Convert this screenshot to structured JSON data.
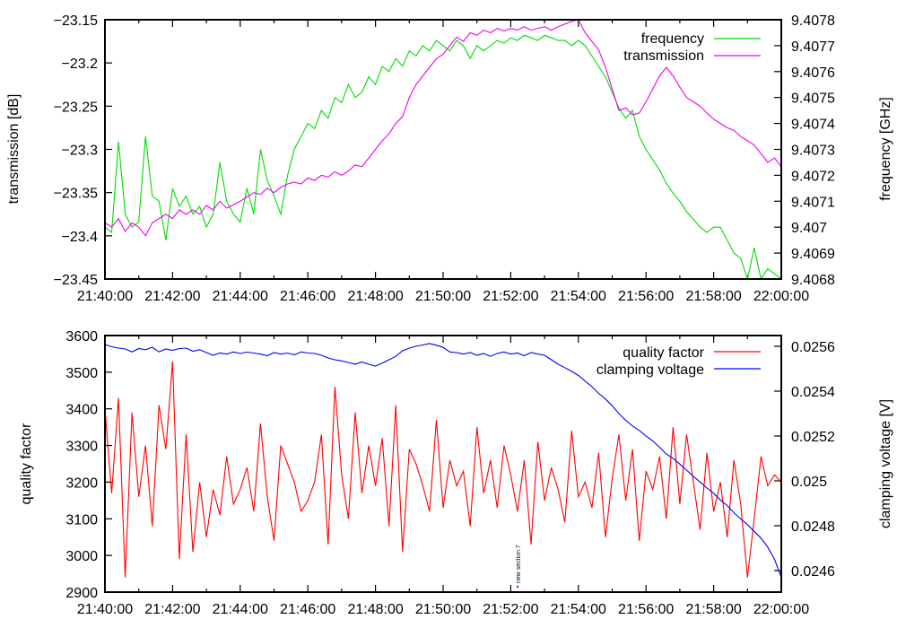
{
  "chart_data": [
    {
      "type": "line",
      "panel": "top",
      "xlabel": "",
      "x_tick_labels": [
        "21:40:00",
        "21:42:00",
        "21:44:00",
        "21:46:00",
        "21:48:00",
        "21:50:00",
        "21:52:00",
        "21:54:00",
        "21:56:00",
        "21:58:00",
        "22:00:00"
      ],
      "x_unit": "minutes after 21:40:00",
      "xlim": [
        0,
        20
      ],
      "y_left": {
        "label": "transmission [dB]",
        "ylim": [
          -23.45,
          -23.15
        ],
        "tick_labels": [
          "-23.45",
          "-23.4",
          "-23.35",
          "-23.3",
          "-23.25",
          "-23.2",
          "-23.15"
        ],
        "ticks": [
          -23.45,
          -23.4,
          -23.35,
          -23.3,
          -23.25,
          -23.2,
          -23.15
        ]
      },
      "y_right": {
        "label": "frequency [GHz]",
        "ylim": [
          9.4068,
          9.4078
        ],
        "tick_labels": [
          "9.4068",
          "9.4069",
          "9.407",
          "9.4071",
          "9.4072",
          "9.4073",
          "9.4074",
          "9.4075",
          "9.4076",
          "9.4077",
          "9.4078"
        ],
        "ticks": [
          9.4068,
          9.4069,
          9.407,
          9.4071,
          9.4072,
          9.4073,
          9.4074,
          9.4075,
          9.4076,
          9.4077,
          9.4078
        ]
      },
      "legend_position": "top-right",
      "series": [
        {
          "name": "frequency",
          "axis": "right",
          "color": "#00dd00",
          "x": [
            0,
            0.2,
            0.4,
            0.6,
            0.8,
            1,
            1.2,
            1.4,
            1.6,
            1.8,
            2,
            2.2,
            2.4,
            2.6,
            2.8,
            3,
            3.2,
            3.4,
            3.6,
            3.8,
            4,
            4.2,
            4.4,
            4.6,
            4.8,
            5,
            5.2,
            5.4,
            5.6,
            5.8,
            6,
            6.2,
            6.4,
            6.6,
            6.8,
            7,
            7.2,
            7.4,
            7.6,
            7.8,
            8,
            8.2,
            8.4,
            8.6,
            8.8,
            9,
            9.2,
            9.4,
            9.6,
            9.8,
            10,
            10.2,
            10.4,
            10.6,
            10.8,
            11,
            11.2,
            11.4,
            11.6,
            11.8,
            12,
            12.2,
            12.4,
            12.6,
            12.8,
            13,
            13.2,
            13.4,
            13.6,
            13.8,
            14,
            14.2,
            14.4,
            14.6,
            14.8,
            15,
            15.2,
            15.4,
            15.6,
            15.8,
            16,
            16.2,
            16.4,
            16.6,
            16.8,
            17,
            17.2,
            17.4,
            17.6,
            17.8,
            18,
            18.2,
            18.4,
            18.6,
            18.8,
            19,
            19.2,
            19.4,
            19.6,
            19.8,
            20
          ],
          "y": [
            9.407,
            9.40698,
            9.40733,
            9.40705,
            9.407,
            9.40702,
            9.40735,
            9.40712,
            9.4071,
            9.40695,
            9.40715,
            9.40708,
            9.40712,
            9.40705,
            9.40708,
            9.407,
            9.40705,
            9.40725,
            9.4071,
            9.40705,
            9.40702,
            9.40715,
            9.40705,
            9.4073,
            9.40718,
            9.40712,
            9.40705,
            9.4072,
            9.4073,
            9.40735,
            9.4074,
            9.40738,
            9.40745,
            9.40742,
            9.4075,
            9.40748,
            9.40755,
            9.4075,
            9.40752,
            9.40758,
            9.40755,
            9.40762,
            9.4076,
            9.40765,
            9.40762,
            9.40768,
            9.40766,
            9.4077,
            9.40768,
            9.40772,
            9.4077,
            9.40768,
            9.40772,
            9.4077,
            9.40765,
            9.4077,
            9.40768,
            9.4077,
            9.40772,
            9.40771,
            9.40773,
            9.40772,
            9.40774,
            9.40773,
            9.40772,
            9.40774,
            9.40773,
            9.40772,
            9.40772,
            9.4077,
            9.40772,
            9.4077,
            9.40766,
            9.40762,
            9.40758,
            9.40752,
            9.40746,
            9.40742,
            9.40745,
            9.40735,
            9.4073,
            9.40726,
            9.40722,
            9.40717,
            9.40713,
            9.4071,
            9.40706,
            9.40703,
            9.407,
            9.40698,
            9.407,
            9.407,
            9.40695,
            9.4069,
            9.40688,
            9.4068,
            9.40692,
            9.40676,
            9.40684,
            9.40682,
            9.40676
          ]
        },
        {
          "name": "transmission",
          "axis": "left",
          "color": "#ee00ee",
          "x": [
            0,
            0.2,
            0.4,
            0.6,
            0.8,
            1,
            1.2,
            1.4,
            1.6,
            1.8,
            2,
            2.2,
            2.4,
            2.6,
            2.8,
            3,
            3.2,
            3.4,
            3.6,
            3.8,
            4,
            4.2,
            4.4,
            4.6,
            4.8,
            5,
            5.2,
            5.4,
            5.6,
            5.8,
            6,
            6.2,
            6.4,
            6.6,
            6.8,
            7,
            7.2,
            7.4,
            7.6,
            7.8,
            8,
            8.2,
            8.4,
            8.6,
            8.8,
            9,
            9.2,
            9.4,
            9.6,
            9.8,
            10,
            10.2,
            10.4,
            10.6,
            10.8,
            11,
            11.2,
            11.4,
            11.6,
            11.8,
            12,
            12.2,
            12.4,
            12.6,
            12.8,
            13,
            13.2,
            13.4,
            13.6,
            13.8,
            14,
            14.2,
            14.4,
            14.6,
            14.8,
            15,
            15.2,
            15.4,
            15.6,
            15.8,
            16,
            16.2,
            16.4,
            16.6,
            16.8,
            17,
            17.2,
            17.4,
            17.6,
            17.8,
            18,
            18.2,
            18.4,
            18.6,
            18.8,
            19,
            19.2,
            19.4,
            19.6,
            19.8,
            20
          ],
          "y": [
            -23.385,
            -23.39,
            -23.38,
            -23.395,
            -23.385,
            -23.39,
            -23.4,
            -23.385,
            -23.38,
            -23.375,
            -23.38,
            -23.37,
            -23.375,
            -23.37,
            -23.375,
            -23.365,
            -23.37,
            -23.36,
            -23.368,
            -23.364,
            -23.36,
            -23.355,
            -23.35,
            -23.352,
            -23.345,
            -23.35,
            -23.344,
            -23.34,
            -23.338,
            -23.34,
            -23.333,
            -23.336,
            -23.33,
            -23.332,
            -23.326,
            -23.33,
            -23.325,
            -23.318,
            -23.32,
            -23.31,
            -23.3,
            -23.29,
            -23.282,
            -23.27,
            -23.262,
            -23.24,
            -23.225,
            -23.215,
            -23.205,
            -23.195,
            -23.19,
            -23.18,
            -23.17,
            -23.175,
            -23.165,
            -23.168,
            -23.162,
            -23.165,
            -23.16,
            -23.163,
            -23.16,
            -23.162,
            -23.158,
            -23.162,
            -23.16,
            -23.158,
            -23.162,
            -23.158,
            -23.155,
            -23.152,
            -23.15,
            -23.165,
            -23.175,
            -23.185,
            -23.205,
            -23.23,
            -23.255,
            -23.252,
            -23.26,
            -23.258,
            -23.245,
            -23.23,
            -23.215,
            -23.205,
            -23.215,
            -23.228,
            -23.24,
            -23.245,
            -23.25,
            -23.258,
            -23.265,
            -23.27,
            -23.275,
            -23.278,
            -23.285,
            -23.29,
            -23.295,
            -23.305,
            -23.315,
            -23.31,
            -23.32
          ]
        }
      ]
    },
    {
      "type": "line",
      "panel": "bottom",
      "xlabel": "",
      "x_tick_labels": [
        "21:40:00",
        "21:42:00",
        "21:44:00",
        "21:46:00",
        "21:48:00",
        "21:50:00",
        "21:52:00",
        "21:54:00",
        "21:56:00",
        "21:58:00",
        "22:00:00"
      ],
      "x_unit": "minutes after 21:40:00",
      "xlim": [
        0,
        20
      ],
      "y_left": {
        "label": "quality factor",
        "ylim": [
          2900,
          3600
        ],
        "tick_labels": [
          "2900",
          "3000",
          "3100",
          "3200",
          "3300",
          "3400",
          "3500",
          "3600"
        ],
        "ticks": [
          2900,
          3000,
          3100,
          3200,
          3300,
          3400,
          3500,
          3600
        ]
      },
      "y_right": {
        "label": "clamping voltage [V]",
        "ylim": [
          0.024504,
          0.025648
        ],
        "tick_labels": [
          "0.0246",
          "0.0248",
          "0.025",
          "0.0252",
          "0.0254",
          "0.0256"
        ],
        "ticks": [
          0.0246,
          0.0248,
          0.025,
          0.0252,
          0.0254,
          0.0256
        ]
      },
      "legend_position": "top-right",
      "annotation": {
        "text": "new section 7",
        "x": 12.2
      },
      "series": [
        {
          "name": "quality factor",
          "axis": "left",
          "color": "#ff0000",
          "x": [
            0,
            0.2,
            0.4,
            0.6,
            0.8,
            1,
            1.2,
            1.4,
            1.6,
            1.8,
            2,
            2.2,
            2.4,
            2.6,
            2.8,
            3,
            3.2,
            3.4,
            3.6,
            3.8,
            4,
            4.2,
            4.4,
            4.6,
            4.8,
            5,
            5.2,
            5.4,
            5.6,
            5.8,
            6,
            6.2,
            6.4,
            6.6,
            6.8,
            7,
            7.2,
            7.4,
            7.6,
            7.8,
            8,
            8.2,
            8.4,
            8.6,
            8.8,
            9,
            9.2,
            9.4,
            9.6,
            9.8,
            10,
            10.2,
            10.4,
            10.6,
            10.8,
            11,
            11.2,
            11.4,
            11.6,
            11.8,
            12,
            12.2,
            12.4,
            12.6,
            12.8,
            13,
            13.2,
            13.4,
            13.6,
            13.8,
            14,
            14.2,
            14.4,
            14.6,
            14.8,
            15,
            15.2,
            15.4,
            15.6,
            15.8,
            16,
            16.2,
            16.4,
            16.6,
            16.8,
            17,
            17.2,
            17.4,
            17.6,
            17.8,
            18,
            18.2,
            18.4,
            18.6,
            18.8,
            19,
            19.2,
            19.4,
            19.6,
            19.8,
            20
          ],
          "y": [
            3400,
            3170,
            3430,
            2940,
            3390,
            3160,
            3300,
            3080,
            3410,
            3290,
            3530,
            2990,
            3330,
            3010,
            3200,
            3050,
            3180,
            3110,
            3270,
            3140,
            3180,
            3240,
            3120,
            3360,
            3160,
            3040,
            3300,
            3250,
            3200,
            3120,
            3150,
            3200,
            3330,
            3030,
            3460,
            3220,
            3100,
            3390,
            3170,
            3300,
            3190,
            3320,
            3080,
            3410,
            3010,
            3290,
            3250,
            3190,
            3120,
            3370,
            3130,
            3260,
            3190,
            3230,
            3080,
            3350,
            3170,
            3260,
            3130,
            3300,
            3220,
            3120,
            3260,
            3030,
            3310,
            3150,
            3240,
            3180,
            3090,
            3340,
            3160,
            3200,
            3130,
            3280,
            3050,
            3210,
            3330,
            3150,
            3290,
            3040,
            3230,
            3180,
            3270,
            3100,
            3350,
            3140,
            3330,
            3200,
            3070,
            3280,
            3120,
            3200,
            3050,
            3260,
            3140,
            2940,
            3100,
            3270,
            3190,
            3220,
            3200
          ]
        },
        {
          "name": "clamping voltage",
          "axis": "right",
          "color": "#0000ff",
          "x": [
            0,
            0.2,
            0.4,
            0.6,
            0.8,
            1,
            1.2,
            1.4,
            1.6,
            1.8,
            2,
            2.2,
            2.4,
            2.6,
            2.8,
            3,
            3.2,
            3.4,
            3.6,
            3.8,
            4,
            4.2,
            4.4,
            4.6,
            4.8,
            5,
            5.2,
            5.4,
            5.6,
            5.8,
            6,
            6.2,
            6.4,
            6.6,
            6.8,
            7,
            7.2,
            7.4,
            7.6,
            7.8,
            8,
            8.2,
            8.4,
            8.6,
            8.8,
            9,
            9.2,
            9.4,
            9.6,
            9.8,
            10,
            10.2,
            10.4,
            10.6,
            10.8,
            11,
            11.2,
            11.4,
            11.6,
            11.8,
            12,
            12.2,
            12.4,
            12.6,
            12.8,
            13,
            13.2,
            13.4,
            13.6,
            13.8,
            14,
            14.2,
            14.4,
            14.6,
            14.8,
            15,
            15.2,
            15.4,
            15.6,
            15.8,
            16,
            16.2,
            16.4,
            16.6,
            16.8,
            17,
            17.2,
            17.4,
            17.6,
            17.8,
            18,
            18.2,
            18.4,
            18.6,
            18.8,
            19,
            19.2,
            19.4,
            19.6,
            19.8,
            20
          ],
          "y": [
            0.025608,
            0.025598,
            0.025592,
            0.025588,
            0.025575,
            0.02559,
            0.025585,
            0.025596,
            0.025575,
            0.025588,
            0.025582,
            0.02559,
            0.025592,
            0.025578,
            0.025585,
            0.025572,
            0.02556,
            0.02557,
            0.025565,
            0.025575,
            0.025568,
            0.025574,
            0.02557,
            0.025565,
            0.025558,
            0.025572,
            0.025565,
            0.02557,
            0.025562,
            0.025575,
            0.02557,
            0.025568,
            0.02556,
            0.025548,
            0.02554,
            0.025535,
            0.025528,
            0.02552,
            0.02553,
            0.02552,
            0.025512,
            0.025525,
            0.02554,
            0.025555,
            0.02558,
            0.025592,
            0.0256,
            0.025606,
            0.025612,
            0.025605,
            0.025595,
            0.025575,
            0.025572,
            0.025565,
            0.025572,
            0.02556,
            0.025568,
            0.025555,
            0.025568,
            0.025575,
            0.025565,
            0.02557,
            0.025558,
            0.025572,
            0.025565,
            0.02556,
            0.02554,
            0.02552,
            0.025505,
            0.025488,
            0.02547,
            0.025445,
            0.02542,
            0.02539,
            0.025365,
            0.025335,
            0.0253,
            0.02527,
            0.025245,
            0.025225,
            0.0252,
            0.025178,
            0.02515,
            0.02512,
            0.0251,
            0.025075,
            0.025048,
            0.02502,
            0.024995,
            0.024968,
            0.024945,
            0.024915,
            0.02489,
            0.024858,
            0.02483,
            0.024805,
            0.024775,
            0.024745,
            0.024705,
            0.02465,
            0.02457
          ]
        }
      ]
    }
  ]
}
